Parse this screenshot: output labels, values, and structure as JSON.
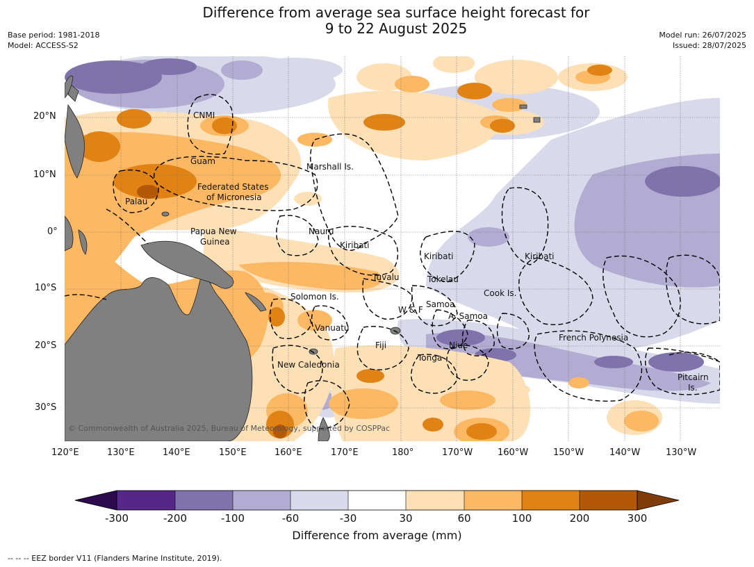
{
  "header": {
    "title_line1": "Difference from average sea surface height forecast for",
    "title_line2": "9 to 22 August 2025",
    "base_period": "Base period: 1981-2018",
    "model": "Model: ACCESS-S2",
    "model_run": "Model run: 26/07/2025",
    "issued": "Issued: 28/07/2025"
  },
  "map": {
    "lat_labels": [
      "20°N",
      "10°N",
      "0°",
      "10°S",
      "20°S",
      "30°S"
    ],
    "lon_labels": [
      "120°E",
      "130°E",
      "140°E",
      "150°E",
      "160°E",
      "170°E",
      "180°",
      "170°W",
      "160°W",
      "150°W",
      "140°W",
      "130°W"
    ],
    "region_labels": [
      "CNMI",
      "Guam",
      "Marshall Is.",
      "Federated States",
      "of Micronesia",
      "Palau",
      "Papua New",
      "Guinea",
      "Nauru",
      "Kiribati",
      "Kiribati",
      "Kiribati",
      "Tuvalu",
      "Tokelau",
      "Solomon Is.",
      "W & F",
      "Samoa",
      "A. Samoa",
      "Cook Is.",
      "Vanuatu",
      "Fiji",
      "Niue",
      "Tonga",
      "French Polynesia",
      "New Caledonia",
      "Pitcairn",
      "Is."
    ],
    "copyright": "© Commonwealth of Australia 2025, Bureau of Meteorology, supported by COSPPac"
  },
  "colorbar": {
    "title": "Difference from average (mm)",
    "ticks": [
      "-300",
      "-200",
      "-100",
      "-60",
      "-30",
      "30",
      "60",
      "100",
      "200",
      "300"
    ],
    "colors": {
      "below_-300": "#2d0a4e",
      "-300_-200": "#542788",
      "-200_-100": "#8073ac",
      "-100_-60": "#b2abd2",
      "-60_-30": "#d8daeb",
      "-30_30": "#ffffff",
      "30_60": "#fee0b6",
      "60_100": "#fdb863",
      "100_200": "#e08214",
      "200_300": "#b35806",
      "above_300": "#7f3b08"
    },
    "land_color": "#808080"
  },
  "footer": {
    "eez_note": "--  --  -- EEZ border V11 (Flanders Marine Institute, 2019)."
  }
}
